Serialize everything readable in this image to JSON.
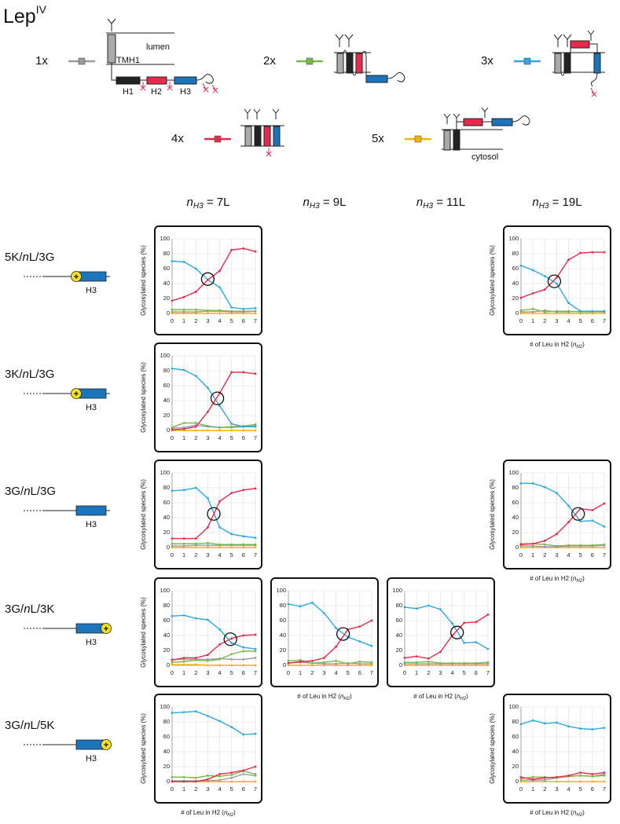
{
  "title": {
    "text": "Lep",
    "sup": "IV"
  },
  "diagram": {
    "lumen": "lumen",
    "tmh1": "TMH1",
    "h1": "H1",
    "h2": "H2",
    "h3": "H3",
    "cytosol": "cytosol"
  },
  "legend": [
    {
      "name": "1x",
      "color": "#9b9b9b"
    },
    {
      "name": "2x",
      "color": "#79b84a"
    },
    {
      "name": "3x",
      "color": "#2aaae0"
    },
    {
      "name": "4x",
      "color": "#e52a4c"
    },
    {
      "name": "5x",
      "color": "#f4b400"
    }
  ],
  "columns": [
    {
      "var": "n",
      "sub": "H3",
      "text": " = 7L"
    },
    {
      "var": "n",
      "sub": "H3",
      "text": " = 9L"
    },
    {
      "var": "n",
      "sub": "H3",
      "text": " = 11L"
    },
    {
      "var": "n",
      "sub": "H3",
      "text": " = 19L"
    }
  ],
  "rows": [
    {
      "label": [
        "5K/",
        "n",
        "L/3G"
      ],
      "helix": "H3",
      "charge": "+",
      "side": "left"
    },
    {
      "label": [
        "3K/",
        "n",
        "L/3G"
      ],
      "helix": "H3",
      "charge": "+",
      "side": "left"
    },
    {
      "label": [
        "3G/",
        "n",
        "L/3G"
      ],
      "helix": "H3"
    },
    {
      "label": [
        "3G/",
        "n",
        "L/3K"
      ],
      "helix": "H3",
      "charge": "+",
      "side": "right"
    },
    {
      "label": [
        "3G/",
        "n",
        "L/5K"
      ],
      "helix": "H3",
      "charge": "+",
      "side": "right"
    }
  ],
  "chart_data": [
    {
      "type": "line",
      "ylabel": "Glycosylated species  (%)",
      "xlim": [
        0,
        7
      ],
      "ylim": [
        0,
        100
      ],
      "xticks": [
        0,
        1,
        2,
        3,
        4,
        5,
        6,
        7
      ],
      "yticks": [
        0,
        20,
        40,
        60,
        80,
        100
      ],
      "grid": true,
      "x": [
        0,
        1,
        2,
        3,
        4,
        5,
        6,
        7
      ],
      "series": [
        {
          "values": [
            2,
            2,
            2,
            3,
            3,
            2,
            2,
            3
          ]
        },
        {
          "values": [
            5,
            5,
            5,
            4,
            4,
            3,
            3,
            3
          ]
        },
        {
          "values": [
            70,
            69,
            60,
            45,
            35,
            8,
            6,
            7
          ]
        },
        {
          "values": [
            17,
            22,
            29,
            45,
            57,
            85,
            87,
            83
          ]
        },
        {
          "values": [
            0,
            0,
            0,
            0,
            0,
            0,
            0,
            0
          ]
        }
      ],
      "crossover": {
        "x": 3,
        "y": 46
      }
    },
    null,
    null,
    {
      "type": "line",
      "ylabel": "Glycosylated species  (%)",
      "xlabel": {
        "text": "# of Leu in H2 (",
        "var": "n",
        "sub": "H2",
        "close": ")"
      },
      "xlim": [
        0,
        7
      ],
      "ylim": [
        0,
        100
      ],
      "xticks": [
        0,
        1,
        2,
        3,
        4,
        5,
        6,
        7
      ],
      "yticks": [
        0,
        20,
        40,
        60,
        80,
        100
      ],
      "grid": true,
      "x": [
        0,
        1,
        2,
        3,
        4,
        5,
        6,
        7
      ],
      "series": [
        {
          "values": [
            2,
            2,
            4,
            2,
            2,
            3,
            3,
            3
          ]
        },
        {
          "values": [
            4,
            6,
            2,
            3,
            3,
            2,
            2,
            2
          ]
        },
        {
          "values": [
            64,
            58,
            50,
            40,
            14,
            3,
            3,
            3
          ]
        },
        {
          "values": [
            21,
            27,
            32,
            48,
            72,
            81,
            82,
            82
          ]
        },
        {
          "values": [
            0,
            0,
            0,
            0,
            0,
            0,
            0,
            0
          ]
        }
      ],
      "crossover": {
        "x": 2.8,
        "y": 43
      }
    },
    {
      "type": "line",
      "ylabel": "Glycosylated species  (%)",
      "xlim": [
        0,
        7
      ],
      "ylim": [
        0,
        100
      ],
      "xticks": [
        0,
        1,
        2,
        3,
        4,
        5,
        6,
        7
      ],
      "yticks": [
        0,
        20,
        40,
        60,
        80,
        100
      ],
      "grid": true,
      "x": [
        0,
        1,
        2,
        3,
        4,
        5,
        6,
        7
      ],
      "series": [
        {
          "values": [
            3,
            4,
            7,
            5,
            4,
            4,
            5,
            6
          ]
        },
        {
          "values": [
            4,
            10,
            10,
            6,
            4,
            5,
            6,
            8
          ]
        },
        {
          "values": [
            83,
            81,
            73,
            57,
            33,
            9,
            5,
            5
          ]
        },
        {
          "values": [
            1,
            2,
            5,
            25,
            50,
            78,
            78,
            76
          ]
        },
        {
          "values": [
            0,
            0,
            0,
            0,
            0,
            0,
            0,
            0
          ]
        }
      ],
      "crossover": {
        "x": 3.8,
        "y": 43
      }
    },
    null,
    null,
    null,
    {
      "type": "line",
      "ylabel": "Glycosylated species  (%)",
      "xlim": [
        0,
        7
      ],
      "ylim": [
        0,
        100
      ],
      "xticks": [
        0,
        1,
        2,
        3,
        4,
        5,
        6,
        7
      ],
      "yticks": [
        0,
        20,
        40,
        60,
        80,
        100
      ],
      "grid": true,
      "x": [
        0,
        1,
        2,
        3,
        4,
        5,
        6,
        7
      ],
      "series": [
        {
          "values": [
            2,
            2,
            3,
            3,
            3,
            3,
            3,
            3
          ]
        },
        {
          "values": [
            5,
            5,
            5,
            6,
            4,
            4,
            4,
            4
          ]
        },
        {
          "values": [
            76,
            77,
            80,
            66,
            27,
            18,
            15,
            13
          ]
        },
        {
          "values": [
            12,
            12,
            12,
            27,
            62,
            73,
            77,
            79
          ]
        },
        {
          "values": [
            0,
            0,
            0,
            0,
            0,
            0,
            0,
            0
          ]
        }
      ],
      "crossover": {
        "x": 3.5,
        "y": 45
      }
    },
    null,
    null,
    {
      "type": "line",
      "ylabel": "Glycosylated species  (%)",
      "xlabel": {
        "text": "# of Leu in H2 (",
        "var": "n",
        "sub": "H2",
        "close": ")"
      },
      "xlim": [
        0,
        7
      ],
      "ylim": [
        0,
        100
      ],
      "xticks": [
        0,
        1,
        2,
        3,
        4,
        5,
        6,
        7
      ],
      "yticks": [
        0,
        20,
        40,
        60,
        80,
        100
      ],
      "grid": true,
      "x": [
        0,
        1,
        2,
        3,
        4,
        5,
        6,
        7
      ],
      "series": [
        {
          "values": [
            2,
            2,
            1,
            1,
            2,
            2,
            2,
            3
          ]
        },
        {
          "values": [
            5,
            5,
            4,
            2,
            3,
            3,
            3,
            4
          ]
        },
        {
          "values": [
            86,
            86,
            81,
            73,
            56,
            35,
            36,
            28
          ]
        },
        {
          "values": [
            4,
            5,
            9,
            18,
            34,
            52,
            50,
            59
          ]
        },
        {
          "values": [
            0,
            0,
            0,
            0,
            0,
            0,
            0,
            0
          ]
        }
      ],
      "crossover": {
        "x": 4.8,
        "y": 45
      }
    },
    {
      "type": "line",
      "ylabel": "Glycosylated species  (%)",
      "xlim": [
        0,
        7
      ],
      "ylim": [
        0,
        100
      ],
      "xticks": [
        0,
        1,
        2,
        3,
        4,
        5,
        6,
        7
      ],
      "yticks": [
        0,
        20,
        40,
        60,
        80,
        100
      ],
      "grid": true,
      "x": [
        0,
        1,
        2,
        3,
        4,
        5,
        6,
        7
      ],
      "series": [
        {
          "values": [
            8,
            8,
            8,
            8,
            9,
            8,
            8,
            10
          ]
        },
        {
          "values": [
            4,
            5,
            7,
            6,
            8,
            15,
            19,
            19
          ]
        },
        {
          "values": [
            66,
            67,
            63,
            61,
            48,
            30,
            24,
            22
          ]
        },
        {
          "values": [
            7,
            10,
            10,
            14,
            28,
            36,
            40,
            41
          ]
        },
        {
          "values": [
            1,
            1,
            1,
            0,
            0,
            0,
            0,
            0
          ]
        }
      ],
      "crossover": {
        "x": 4.9,
        "y": 35
      }
    },
    {
      "type": "line",
      "xlabel": {
        "text": "# of Leu in H2 (",
        "var": "n",
        "sub": "H2",
        "close": ")"
      },
      "xlim": [
        0,
        7
      ],
      "ylim": [
        0,
        100
      ],
      "xticks": [
        0,
        1,
        2,
        3,
        4,
        5,
        6,
        7
      ],
      "yticks": [
        0,
        20,
        40,
        60,
        80,
        100
      ],
      "grid": true,
      "x": [
        0,
        1,
        2,
        3,
        4,
        5,
        6,
        7
      ],
      "series": [
        {
          "values": [
            3,
            4,
            3,
            2,
            2,
            3,
            2,
            2
          ]
        },
        {
          "values": [
            6,
            7,
            3,
            4,
            6,
            2,
            5,
            4
          ]
        },
        {
          "values": [
            82,
            79,
            84,
            70,
            50,
            38,
            32,
            26
          ]
        },
        {
          "values": [
            3,
            5,
            6,
            10,
            25,
            48,
            52,
            60
          ]
        },
        {
          "values": [
            0,
            0,
            0,
            0,
            0,
            0,
            0,
            0
          ]
        }
      ],
      "crossover": {
        "x": 4.6,
        "y": 42
      }
    },
    {
      "type": "line",
      "xlabel": {
        "text": "# of Leu in H2 (",
        "var": "n",
        "sub": "H2",
        "close": ")"
      },
      "xlim": [
        0,
        7
      ],
      "ylim": [
        0,
        100
      ],
      "xticks": [
        0,
        1,
        2,
        3,
        4,
        5,
        6,
        7
      ],
      "yticks": [
        0,
        20,
        40,
        60,
        80,
        100
      ],
      "grid": true,
      "x": [
        0,
        1,
        2,
        3,
        4,
        5,
        6,
        7
      ],
      "series": [
        {
          "values": [
            2,
            2,
            2,
            2,
            2,
            2,
            2,
            2
          ]
        },
        {
          "values": [
            4,
            4,
            5,
            3,
            3,
            3,
            3,
            4
          ]
        },
        {
          "values": [
            78,
            76,
            80,
            75,
            56,
            30,
            31,
            22
          ]
        },
        {
          "values": [
            10,
            12,
            9,
            18,
            40,
            57,
            58,
            68
          ]
        },
        {
          "values": [
            0,
            0,
            0,
            0,
            0,
            0,
            0,
            0
          ]
        }
      ],
      "crossover": {
        "x": 4.4,
        "y": 44
      }
    },
    null,
    {
      "type": "line",
      "ylabel": "Glycosylated species  (%)",
      "xlabel": {
        "text": "# of Leu in H2 (",
        "var": "n",
        "sub": "H2",
        "close": ")"
      },
      "xlim": [
        0,
        7
      ],
      "ylim": [
        0,
        100
      ],
      "xticks": [
        0,
        1,
        2,
        3,
        4,
        5,
        6,
        7
      ],
      "yticks": [
        0,
        20,
        40,
        60,
        80,
        100
      ],
      "grid": true,
      "x": [
        0,
        1,
        2,
        3,
        4,
        5,
        6,
        7
      ],
      "series": [
        {
          "values": [
            1,
            1,
            1,
            1,
            2,
            5,
            10,
            8
          ]
        },
        {
          "values": [
            6,
            6,
            5,
            8,
            7,
            9,
            14,
            10
          ]
        },
        {
          "values": [
            92,
            93,
            94,
            88,
            81,
            73,
            63,
            64
          ]
        },
        {
          "values": [
            0,
            0,
            0,
            3,
            10,
            12,
            15,
            20
          ]
        },
        {
          "values": [
            0,
            0,
            0,
            0,
            0,
            0,
            0,
            0
          ]
        }
      ]
    },
    null,
    null,
    {
      "type": "line",
      "ylabel": "Glycosylated species  (%)",
      "xlabel": {
        "text": "# of Leu in H2 (",
        "var": "n",
        "sub": "H2",
        "close": ")"
      },
      "xlim": [
        0,
        7
      ],
      "ylim": [
        0,
        100
      ],
      "xticks": [
        0,
        1,
        2,
        3,
        4,
        5,
        6,
        7
      ],
      "yticks": [
        0,
        20,
        40,
        60,
        80,
        100
      ],
      "grid": true,
      "x": [
        0,
        1,
        2,
        3,
        4,
        5,
        6,
        7
      ],
      "series": [
        {
          "values": [
            2,
            2,
            2,
            5,
            7,
            8,
            7,
            10
          ]
        },
        {
          "values": [
            4,
            6,
            6,
            5,
            7,
            8,
            7,
            8
          ]
        },
        {
          "values": [
            77,
            82,
            78,
            79,
            74,
            71,
            70,
            72
          ]
        },
        {
          "values": [
            6,
            3,
            5,
            6,
            8,
            12,
            10,
            12
          ]
        },
        {
          "values": [
            0,
            0,
            0,
            0,
            0,
            0,
            0,
            0
          ]
        }
      ]
    }
  ]
}
